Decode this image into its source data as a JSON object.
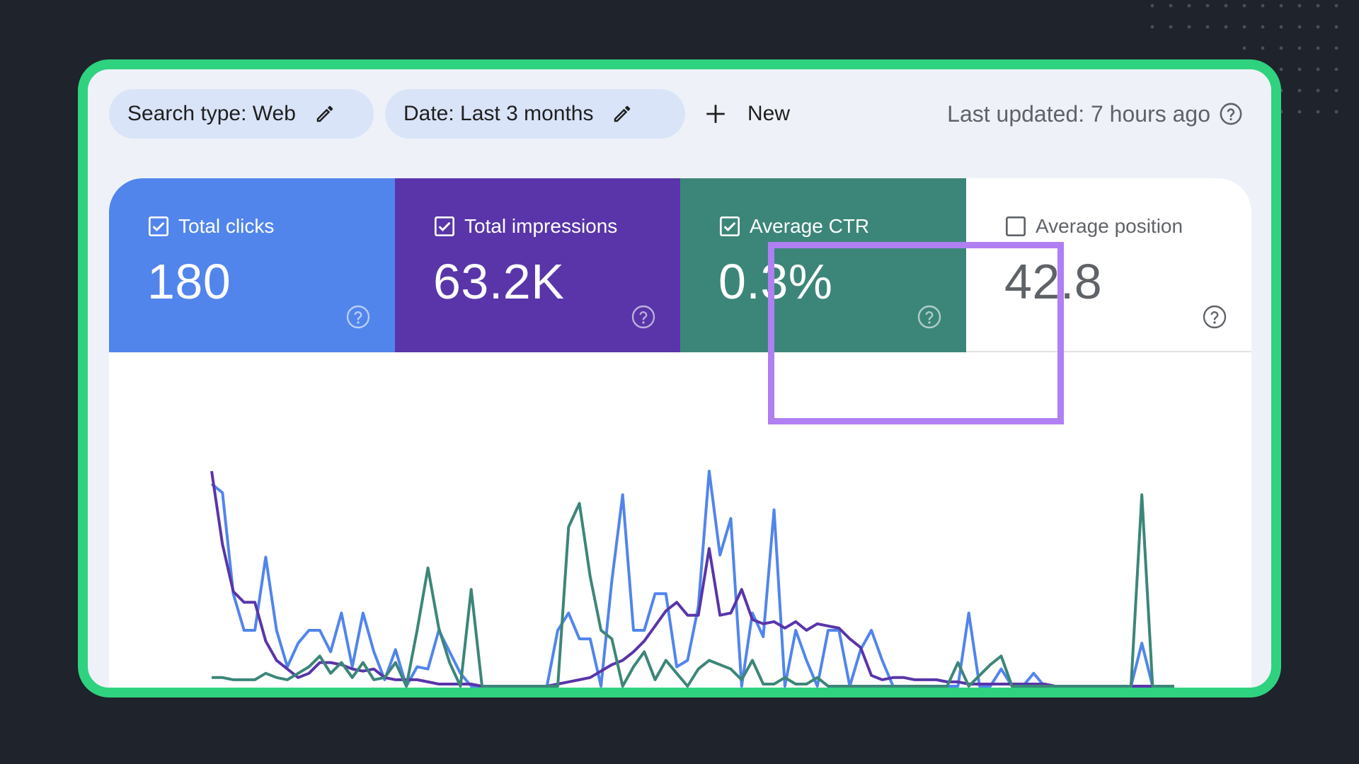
{
  "toolbar": {
    "search_chip_label": "Search type: Web",
    "date_chip_label": "Date: Last 3 months",
    "new_label": "New",
    "last_updated": "Last updated: 7 hours ago"
  },
  "metrics": {
    "clicks": {
      "label": "Total clicks",
      "value": "180",
      "checked": true,
      "color": "#5185ec"
    },
    "impressions": {
      "label": "Total impressions",
      "value": "63.2K",
      "checked": true,
      "color": "#5935a9"
    },
    "ctr": {
      "label": "Average CTR",
      "value": "0.3%",
      "checked": true,
      "color": "#3c8679"
    },
    "position": {
      "label": "Average position",
      "value": "42.8",
      "checked": false
    }
  },
  "colors": {
    "frame": "#2fd27f",
    "highlight": "#b07ff2",
    "background": "#1f232b"
  },
  "chart_data": {
    "type": "line",
    "x": [
      0,
      1,
      2,
      3,
      4,
      5,
      6,
      7,
      8,
      9,
      10,
      11,
      12,
      13,
      14,
      15,
      16,
      17,
      18,
      19,
      20,
      21,
      22,
      23,
      24,
      25,
      26,
      27,
      28,
      29,
      30,
      31,
      32,
      33,
      34,
      35,
      36,
      37,
      38,
      39,
      40,
      41,
      42,
      43,
      44,
      45,
      46,
      47,
      48,
      49,
      50,
      51,
      52,
      53,
      54,
      55,
      56,
      57,
      58,
      59,
      60,
      61,
      62,
      63,
      64,
      65,
      66,
      67,
      68,
      69,
      70,
      71,
      72,
      73,
      74,
      75,
      76,
      77,
      78,
      79,
      80,
      81,
      82,
      83,
      84,
      85,
      86,
      87,
      88,
      89
    ],
    "ylim": [
      0,
      100
    ],
    "series": [
      {
        "color": "#5185ec",
        "values": [
          94,
          90,
          43,
          26,
          26,
          60,
          26,
          9,
          20,
          26,
          26,
          16,
          34,
          9,
          34,
          16,
          3,
          17,
          0,
          9,
          8,
          26,
          16,
          6,
          0,
          0,
          0,
          0,
          0,
          0,
          0,
          0,
          26,
          34,
          22,
          22,
          0,
          49,
          89,
          26,
          26,
          43,
          43,
          9,
          12,
          37,
          100,
          61,
          78,
          0,
          34,
          23,
          82,
          0,
          26,
          12,
          0,
          26,
          26,
          0,
          17,
          26,
          12,
          0,
          0,
          0,
          0,
          0,
          0,
          0,
          34,
          0,
          0,
          8,
          0,
          0,
          6,
          0,
          0,
          0,
          0,
          0,
          0,
          0,
          0,
          0,
          20,
          0,
          0,
          0
        ]
      },
      {
        "color": "#5935a9",
        "values": [
          100,
          66,
          44,
          39,
          39,
          21,
          12,
          8,
          4,
          6,
          11,
          11,
          10,
          8,
          7,
          8,
          4,
          3,
          3,
          3,
          2,
          1,
          1,
          1,
          1,
          0,
          0,
          0,
          0,
          0,
          0,
          0,
          1,
          2,
          3,
          4,
          7,
          10,
          12,
          16,
          21,
          28,
          35,
          39,
          33,
          33,
          64,
          33,
          34,
          45,
          31,
          29,
          30,
          27,
          30,
          26,
          29,
          28,
          27,
          22,
          18,
          5,
          3,
          4,
          4,
          3,
          3,
          3,
          2,
          2,
          1,
          1,
          1,
          1,
          1,
          1,
          1,
          1,
          0,
          0,
          0,
          0,
          0,
          0,
          0,
          0,
          0,
          0,
          0,
          0
        ]
      },
      {
        "color": "#3c8679",
        "values": [
          4,
          4,
          3,
          3,
          3,
          6,
          4,
          3,
          6,
          9,
          14,
          6,
          11,
          4,
          11,
          3,
          4,
          11,
          0,
          26,
          55,
          27,
          11,
          0,
          45,
          0,
          0,
          0,
          0,
          0,
          0,
          0,
          0,
          74,
          85,
          51,
          26,
          22,
          0,
          9,
          16,
          3,
          12,
          6,
          0,
          8,
          12,
          10,
          8,
          3,
          12,
          1,
          1,
          4,
          1,
          1,
          4,
          0,
          0,
          0,
          0,
          0,
          0,
          0,
          0,
          0,
          0,
          0,
          0,
          11,
          0,
          5,
          10,
          14,
          0,
          0,
          0,
          0,
          0,
          0,
          0,
          0,
          0,
          0,
          0,
          0,
          89,
          0,
          0,
          0
        ]
      }
    ]
  }
}
